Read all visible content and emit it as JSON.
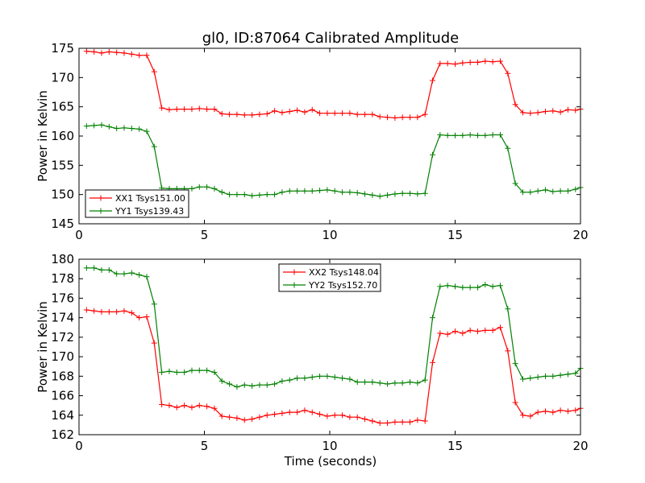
{
  "chart_data": [
    {
      "type": "line",
      "title": "gl0, ID:87064 Calibrated Amplitude",
      "xlabel": "",
      "ylabel": "Power in Kelvin",
      "xlim": [
        0,
        20
      ],
      "ylim": [
        145,
        175
      ],
      "xticks": [
        0,
        5,
        10,
        15,
        20
      ],
      "yticks": [
        145,
        150,
        155,
        160,
        165,
        170,
        175
      ],
      "grid": false,
      "legend_position": "lower-left",
      "x": [
        0.3,
        0.6,
        0.9,
        1.2,
        1.5,
        1.8,
        2.1,
        2.4,
        2.7,
        3.0,
        3.3,
        3.6,
        3.9,
        4.2,
        4.5,
        4.8,
        5.1,
        5.4,
        5.7,
        6.0,
        6.3,
        6.6,
        6.9,
        7.2,
        7.5,
        7.8,
        8.1,
        8.4,
        8.7,
        9.0,
        9.3,
        9.6,
        9.9,
        10.2,
        10.5,
        10.8,
        11.1,
        11.4,
        11.7,
        12.0,
        12.3,
        12.6,
        12.9,
        13.2,
        13.5,
        13.8,
        14.1,
        14.4,
        14.7,
        15.0,
        15.3,
        15.6,
        15.9,
        16.2,
        16.5,
        16.8,
        17.1,
        17.4,
        17.7,
        18.0,
        18.3,
        18.6,
        18.9,
        19.2,
        19.5,
        19.8,
        20.0
      ],
      "series": [
        {
          "name": "XX1 Tsys151.00",
          "color": "#ff0000",
          "values": [
            174.5,
            174.4,
            174.2,
            174.4,
            174.3,
            174.2,
            174.0,
            173.8,
            173.8,
            171.0,
            164.8,
            164.5,
            164.6,
            164.6,
            164.6,
            164.7,
            164.6,
            164.6,
            163.8,
            163.7,
            163.7,
            163.6,
            163.6,
            163.7,
            163.8,
            164.3,
            164.0,
            164.2,
            164.4,
            164.1,
            164.5,
            163.9,
            163.9,
            163.9,
            163.9,
            163.9,
            163.7,
            163.7,
            163.7,
            163.3,
            163.2,
            163.1,
            163.2,
            163.2,
            163.2,
            163.7,
            169.5,
            172.4,
            172.4,
            172.3,
            172.5,
            172.6,
            172.6,
            172.8,
            172.7,
            172.8,
            170.7,
            165.4,
            164.0,
            163.9,
            164.0,
            164.2,
            164.3,
            164.1,
            164.5,
            164.4,
            164.6
          ]
        },
        {
          "name": "YY1 Tsys139.43",
          "color": "#008000",
          "values": [
            161.7,
            161.8,
            161.9,
            161.6,
            161.3,
            161.4,
            161.3,
            161.2,
            160.8,
            158.2,
            151.1,
            151.0,
            151.0,
            151.0,
            151.0,
            151.3,
            151.3,
            151.0,
            150.4,
            150.0,
            150.0,
            150.0,
            149.8,
            149.9,
            150.0,
            150.0,
            150.4,
            150.6,
            150.6,
            150.6,
            150.6,
            150.7,
            150.8,
            150.6,
            150.4,
            150.4,
            150.3,
            150.1,
            149.9,
            149.7,
            149.9,
            150.1,
            150.2,
            150.2,
            150.1,
            150.2,
            156.8,
            160.2,
            160.1,
            160.1,
            160.1,
            160.2,
            160.1,
            160.1,
            160.2,
            160.2,
            157.9,
            151.9,
            150.4,
            150.4,
            150.6,
            150.8,
            150.5,
            150.6,
            150.6,
            150.9,
            151.2
          ]
        }
      ]
    },
    {
      "type": "line",
      "title": "",
      "xlabel": "Time (seconds)",
      "ylabel": "Power in Kelvin",
      "xlim": [
        0,
        20
      ],
      "ylim": [
        162,
        180
      ],
      "xticks": [
        0,
        5,
        10,
        15,
        20
      ],
      "yticks": [
        162,
        164,
        166,
        168,
        170,
        172,
        174,
        176,
        178,
        180
      ],
      "grid": false,
      "legend_position": "top-center",
      "x": [
        0.3,
        0.6,
        0.9,
        1.2,
        1.5,
        1.8,
        2.1,
        2.4,
        2.7,
        3.0,
        3.3,
        3.6,
        3.9,
        4.2,
        4.5,
        4.8,
        5.1,
        5.4,
        5.7,
        6.0,
        6.3,
        6.6,
        6.9,
        7.2,
        7.5,
        7.8,
        8.1,
        8.4,
        8.7,
        9.0,
        9.3,
        9.6,
        9.9,
        10.2,
        10.5,
        10.8,
        11.1,
        11.4,
        11.7,
        12.0,
        12.3,
        12.6,
        12.9,
        13.2,
        13.5,
        13.8,
        14.1,
        14.4,
        14.7,
        15.0,
        15.3,
        15.6,
        15.9,
        16.2,
        16.5,
        16.8,
        17.1,
        17.4,
        17.7,
        18.0,
        18.3,
        18.6,
        18.9,
        19.2,
        19.5,
        19.8,
        20.0
      ],
      "series": [
        {
          "name": "XX2 Tsys148.04",
          "color": "#ff0000",
          "values": [
            174.8,
            174.7,
            174.6,
            174.6,
            174.6,
            174.7,
            174.5,
            174.0,
            174.1,
            171.4,
            165.1,
            165.0,
            164.8,
            165.0,
            164.8,
            165.0,
            164.9,
            164.7,
            163.9,
            163.8,
            163.7,
            163.5,
            163.6,
            163.8,
            164.0,
            164.1,
            164.2,
            164.3,
            164.3,
            164.5,
            164.3,
            164.1,
            163.9,
            164.0,
            164.0,
            163.8,
            163.8,
            163.6,
            163.4,
            163.2,
            163.2,
            163.3,
            163.3,
            163.3,
            163.5,
            163.4,
            169.4,
            172.4,
            172.3,
            172.6,
            172.4,
            172.7,
            172.6,
            172.7,
            172.7,
            173.0,
            170.6,
            165.3,
            164.0,
            163.9,
            164.3,
            164.4,
            164.3,
            164.5,
            164.4,
            164.5,
            164.7
          ]
        },
        {
          "name": "YY2 Tsys152.70",
          "color": "#008000",
          "values": [
            179.1,
            179.1,
            178.9,
            178.9,
            178.5,
            178.5,
            178.6,
            178.4,
            178.2,
            175.4,
            168.4,
            168.5,
            168.4,
            168.4,
            168.6,
            168.6,
            168.6,
            168.4,
            167.5,
            167.2,
            166.9,
            167.1,
            167.0,
            167.1,
            167.1,
            167.2,
            167.5,
            167.6,
            167.8,
            167.8,
            167.9,
            168.0,
            168.0,
            167.9,
            167.8,
            167.7,
            167.4,
            167.4,
            167.4,
            167.3,
            167.2,
            167.3,
            167.3,
            167.4,
            167.3,
            167.6,
            174.0,
            177.2,
            177.3,
            177.2,
            177.1,
            177.1,
            177.1,
            177.4,
            177.2,
            177.3,
            174.9,
            169.3,
            167.7,
            167.8,
            167.9,
            168.0,
            168.0,
            168.1,
            168.2,
            168.3,
            168.8
          ]
        }
      ]
    }
  ]
}
